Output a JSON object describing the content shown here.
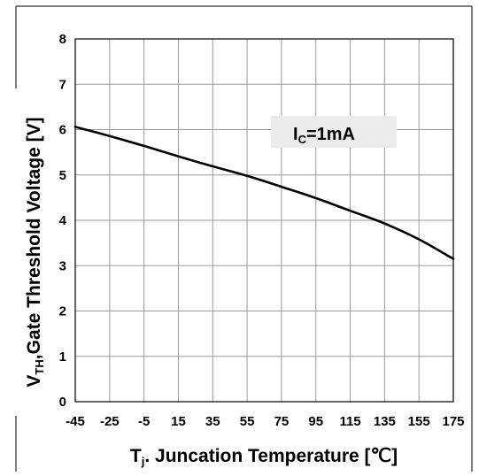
{
  "chart_data": {
    "type": "line",
    "xlabel": {
      "prefix": "T",
      "sub": "j",
      "rest": ". Juncation Temperature [℃]"
    },
    "ylabel": {
      "prefix": "V",
      "sub": "TH",
      "rest": ",Gate Threshold Voltage [V]"
    },
    "annotation": {
      "prefix": "I",
      "sub": "C",
      "rest": "=1mA"
    },
    "xlim": [
      -45,
      175
    ],
    "ylim": [
      0,
      8
    ],
    "x_ticks": [
      -45,
      -25,
      -5,
      15,
      35,
      55,
      75,
      95,
      115,
      135,
      155,
      175
    ],
    "y_ticks": [
      0,
      1,
      2,
      3,
      4,
      5,
      6,
      7,
      8
    ],
    "grid": true,
    "series": [
      {
        "x": [
          -45,
          -25,
          -5,
          15,
          35,
          55,
          75,
          95,
          115,
          135,
          155,
          175
        ],
        "y": [
          6.06,
          5.86,
          5.64,
          5.41,
          5.19,
          4.98,
          4.74,
          4.49,
          4.21,
          3.93,
          3.58,
          3.15
        ]
      }
    ]
  },
  "colors": {
    "line": "#000000",
    "grid": "#9a9a9a",
    "annotation_bg": "#ececec",
    "frame": "#000000"
  }
}
